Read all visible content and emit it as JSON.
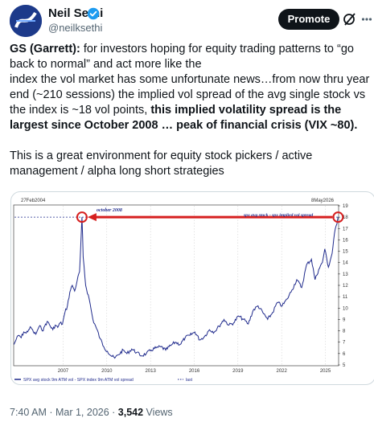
{
  "author": {
    "name": "Neil Sethi",
    "handle": "@neilksethi"
  },
  "header": {
    "promote_label": "Promote"
  },
  "tweet": {
    "bold_lead": "GS (Garrett):",
    "para1_a": " for investors hoping for equity trading patterns to “go back to normal” and act more like the",
    "para1_b": "index the vol market has some unfortunate news…from now thru year end (~210 sessions) the implied vol spread of the avg single stock vs the index is ~18 vol points, ",
    "para1_bold": "this implied volatility spread is the largest since October 2008 … peak of financial crisis (VIX ~80).",
    "para2": "This is a great environment for equity stock pickers / active management / alpha long short strategies"
  },
  "meta": {
    "time": "7:40 AM · Mar 1, 2026 · ",
    "views_count": "3,542",
    "views_label": " Views"
  },
  "chart_data": {
    "type": "line",
    "date_start_label": "27Feb2004",
    "date_end_label": "8May2026",
    "x_ticks": [
      "2007",
      "2010",
      "2013",
      "2016",
      "2019",
      "2022",
      "2025"
    ],
    "y_ticks": [
      5,
      6,
      7,
      8,
      9,
      10,
      11,
      12,
      13,
      14,
      15,
      16,
      17,
      18,
      19
    ],
    "ylim": [
      5,
      19
    ],
    "annotations": {
      "left": "october 2008",
      "right": "spx avg stock - spx implied vol spread"
    },
    "legend": [
      "SPX avg stock 9m ATM vol - SPX index 9m ATM vol spread",
      "last"
    ],
    "last_value": 18,
    "series": [
      {
        "x": [
          "2004-02",
          "2004-04",
          "2004-06",
          "2004-08",
          "2004-10",
          "2004-12",
          "2005-02",
          "2005-04",
          "2005-06",
          "2005-08",
          "2005-10",
          "2005-12",
          "2006-02",
          "2006-04",
          "2006-06",
          "2006-08",
          "2006-10",
          "2006-12",
          "2007-02",
          "2007-04",
          "2007-06",
          "2007-08",
          "2007-10",
          "2007-12",
          "2008-02",
          "2008-04",
          "2008-06",
          "2008-08",
          "2008-09",
          "2008-10",
          "2008-11",
          "2009-01",
          "2009-04",
          "2009-07",
          "2009-10",
          "2010-01",
          "2010-04",
          "2010-07",
          "2010-10",
          "2011-01",
          "2011-04",
          "2011-08",
          "2011-11",
          "2012-03",
          "2012-07",
          "2012-11",
          "2013-03",
          "2013-07",
          "2013-11",
          "2014-03",
          "2014-07",
          "2014-11",
          "2015-03",
          "2015-07",
          "2015-11",
          "2016-03",
          "2016-07",
          "2016-11",
          "2017-03",
          "2017-07",
          "2017-11",
          "2018-03",
          "2018-07",
          "2018-11",
          "2019-03",
          "2019-07",
          "2019-11",
          "2020-03",
          "2020-07",
          "2020-11",
          "2021-03",
          "2021-07",
          "2021-11",
          "2022-03",
          "2022-07",
          "2022-11",
          "2023-03",
          "2023-07",
          "2023-11",
          "2024-03",
          "2024-07",
          "2024-10",
          "2025-01",
          "2025-04",
          "2025-06",
          "2025-09",
          "2025-12",
          "2026-02",
          "2026-04",
          "2026-05"
        ],
        "y": [
          6.8,
          7.3,
          7.6,
          7.4,
          7.9,
          7.8,
          8.1,
          8.3,
          7.9,
          7.7,
          8.2,
          8.4,
          8.0,
          8.6,
          8.8,
          8.4,
          8.1,
          8.5,
          8.3,
          8.7,
          8.6,
          9.6,
          10.2,
          11.4,
          12.0,
          11.5,
          12.4,
          13.2,
          15.5,
          18.0,
          14.5,
          12.0,
          10.8,
          9.0,
          8.2,
          7.3,
          6.6,
          6.2,
          5.8,
          5.6,
          5.9,
          6.3,
          6.0,
          6.4,
          6.1,
          5.8,
          6.0,
          6.3,
          6.5,
          6.6,
          6.3,
          6.7,
          7.0,
          6.8,
          7.4,
          7.6,
          7.9,
          7.2,
          7.5,
          8.1,
          7.9,
          8.4,
          9.0,
          8.5,
          8.7,
          9.3,
          9.0,
          8.6,
          9.8,
          10.2,
          9.6,
          9.0,
          9.6,
          10.5,
          10.2,
          10.8,
          11.6,
          12.5,
          11.8,
          13.8,
          14.3,
          12.5,
          13.4,
          14.0,
          15.2,
          13.6,
          14.8,
          16.6,
          17.4,
          18.0
        ]
      }
    ]
  }
}
